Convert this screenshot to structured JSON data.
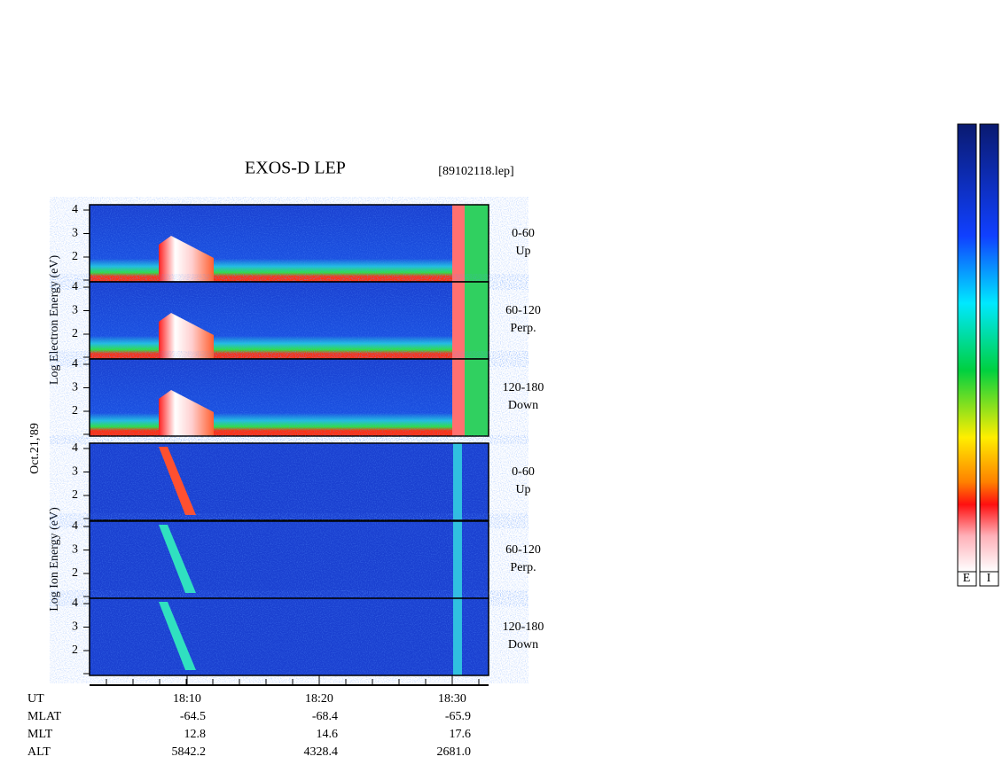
{
  "header": {
    "title": "EXOS-D LEP",
    "file": "[89102118.lep]"
  },
  "electron_axis_label": "Log  Electron  Energy (eV)",
  "ion_axis_label": "Log  Ion  Energy (eV)",
  "date": "Oct.21,'89",
  "panels": [
    {
      "label": "0-60",
      "sub": "Up",
      "ticks": [
        "4",
        "3",
        "2"
      ]
    },
    {
      "label": "60-120",
      "sub": "Perp.",
      "ticks": [
        "4",
        "3",
        "2"
      ]
    },
    {
      "label": "120-180",
      "sub": "Down",
      "ticks": [
        "4",
        "3",
        "2"
      ]
    },
    {
      "label": "0-60",
      "sub": "Up",
      "ticks": [
        "4",
        "3",
        "2"
      ]
    },
    {
      "label": "60-120",
      "sub": "Perp.",
      "ticks": [
        "4",
        "3",
        "2"
      ]
    },
    {
      "label": "120-180",
      "sub": "Down",
      "ticks": [
        "4",
        "3",
        "2"
      ]
    }
  ],
  "time_ticks": [
    "18:10",
    "18:20",
    "18:30"
  ],
  "orbit": {
    "labels": [
      "UT",
      "MLAT",
      "MLT",
      "ALT"
    ],
    "rows": [
      [
        "-64.5",
        "-68.4",
        "-65.9"
      ],
      [
        "12.8",
        "14.6",
        "17.6"
      ],
      [
        "5842.2",
        "4328.4",
        "2681.0"
      ]
    ]
  },
  "colorbar": [
    "E",
    "I"
  ]
}
